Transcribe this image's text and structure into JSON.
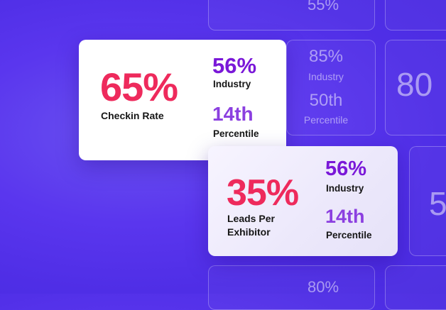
{
  "background_tiles": {
    "top_center_value": "55%",
    "mid_value": "85%",
    "mid_label": "Industry",
    "mid_percentile": "50th",
    "mid_percentile_label": "Percentile",
    "right_value": "80",
    "far_right_value": "5",
    "bottom_value": "80%"
  },
  "card_checkin": {
    "value": "65%",
    "label": "Checkin Rate",
    "industry_value": "56%",
    "industry_label": "Industry",
    "percentile_value": "14th",
    "percentile_label": "Percentile"
  },
  "card_leads": {
    "value": "35%",
    "label_line1": "Leads Per",
    "label_line2": "Exhibitor",
    "industry_value": "56%",
    "industry_label": "Industry",
    "percentile_value": "14th",
    "percentile_label": "Percentile"
  },
  "colors": {
    "background": "#5a36ee",
    "highlight": "#ee2a5c",
    "industry_purple": "#7a18d8",
    "percentile_purple": "#8b3fe0"
  }
}
